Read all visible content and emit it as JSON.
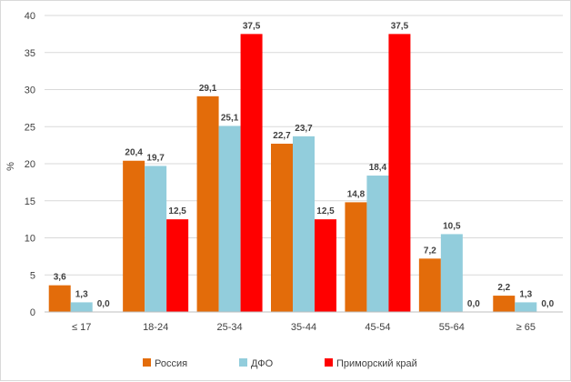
{
  "chart_data": {
    "type": "bar",
    "title": "",
    "xlabel": "",
    "ylabel": "%",
    "ylim": [
      0,
      40
    ],
    "yticks": [
      0,
      5,
      10,
      15,
      20,
      25,
      30,
      35,
      40
    ],
    "grid": true,
    "legend_position": "bottom",
    "categories": [
      "≤ 17",
      "18-24",
      "25-34",
      "35-44",
      "45-54",
      "55-64",
      "≥ 65"
    ],
    "series": [
      {
        "name": "Россия",
        "color": "#e36c0a",
        "values": [
          3.6,
          20.4,
          29.1,
          22.7,
          14.8,
          7.2,
          2.2
        ]
      },
      {
        "name": "ДФО",
        "color": "#92cddc",
        "values": [
          1.3,
          19.7,
          25.1,
          23.7,
          18.4,
          10.5,
          1.3
        ]
      },
      {
        "name": "Приморский край",
        "color": "#ff0000",
        "values": [
          0.0,
          12.5,
          37.5,
          12.5,
          37.5,
          0.0,
          0.0
        ]
      }
    ]
  }
}
